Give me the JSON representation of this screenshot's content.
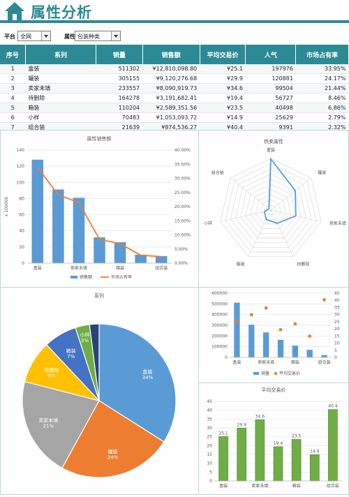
{
  "header": {
    "title": "属性分析"
  },
  "filters": {
    "platform_label": "平台",
    "platform_value": "全网",
    "attribute_label": "属性",
    "attribute_value": "包装种类"
  },
  "table": {
    "columns": [
      "序号",
      "系列",
      "销量",
      "销售额",
      "平均交易价",
      "人气",
      "市场占有率"
    ],
    "rows": [
      [
        "1",
        "盒装",
        "511302",
        "¥12,810,098.80",
        "¥25.1",
        "197976",
        "33.95%"
      ],
      [
        "2",
        "罐装",
        "305155",
        "¥9,120,276.68",
        "¥29.9",
        "120881",
        "24.17%"
      ],
      [
        "3",
        "卖家未填",
        "233557",
        "¥8,090,919.73",
        "¥34.6",
        "99504",
        "21.44%"
      ],
      [
        "4",
        "待删除",
        "164278",
        "¥3,191,682.41",
        "¥19.4",
        "56727",
        "8.46%"
      ],
      [
        "5",
        "箱装",
        "110204",
        "¥2,589,351.56",
        "¥23.5",
        "40498",
        "6.86%"
      ],
      [
        "6",
        "小样",
        "70483",
        "¥1,053,093.72",
        "¥14.9",
        "25629",
        "2.79%"
      ],
      [
        "7",
        "组合装",
        "21639",
        "¥874,536.27",
        "¥40.4",
        "9391",
        "2.32%"
      ]
    ]
  },
  "colors": {
    "teal": "#2c8a94",
    "blue": "#5b9bd5",
    "orange": "#ed7d31",
    "gray": "#a5a5a5",
    "yellow": "#ffc000",
    "navy": "#4472c4",
    "green": "#70ad47",
    "darkblue": "#264478"
  },
  "chart_data": [
    {
      "type": "bar",
      "title": "属性销售额",
      "ylabel": "x 100000",
      "categories": [
        "盒装",
        "罐装",
        "卖家未填",
        "待删除",
        "箱装",
        "小样",
        "组合装"
      ],
      "category_labels_shown": [
        "盒装",
        "卖家未填",
        "箱装",
        "组合装"
      ],
      "ylim": [
        0,
        140
      ],
      "y_ticks": [
        0,
        20,
        40,
        60,
        80,
        100,
        120,
        140
      ],
      "y2lim": [
        0,
        40
      ],
      "y2_ticks": [
        "0.00%",
        "5.00%",
        "10.00%",
        "15.00%",
        "20.00%",
        "25.00%",
        "30.00%",
        "35.00%",
        "40.00%"
      ],
      "series": [
        {
          "name": "销售额",
          "kind": "bar",
          "values": [
            128.1,
            91.2,
            80.9,
            31.9,
            25.9,
            10.5,
            8.7
          ]
        },
        {
          "name": "市场占有率",
          "kind": "line",
          "axis": "right",
          "values": [
            33.95,
            24.17,
            21.44,
            8.46,
            6.86,
            2.79,
            2.32
          ]
        }
      ],
      "legend": "bottom"
    },
    {
      "type": "radar",
      "title": "热卖属性",
      "categories": [
        "盒装",
        "罐装",
        "卖家未填",
        "待删除",
        "箱装",
        "小样",
        "组合装"
      ],
      "values": [
        197976,
        120881,
        99504,
        56727,
        40498,
        25629,
        9391
      ],
      "max": 200000
    },
    {
      "type": "pie",
      "title": "系列",
      "categories": [
        "盒装",
        "罐装",
        "卖家未填",
        "待删除",
        "箱装",
        "小样",
        "组合装"
      ],
      "values": [
        34,
        24,
        21,
        9,
        7,
        3,
        2
      ],
      "labels": [
        "盒装\n34%",
        "罐装\n24%",
        "卖家未填\n21%",
        "待删除\n9%",
        "箱装\n7%",
        "小样\n3%",
        ""
      ]
    },
    {
      "type": "bar",
      "categories": [
        "盒装",
        "罐装",
        "卖家未填",
        "待删除",
        "箱装",
        "小样",
        "组合装"
      ],
      "category_labels_shown": [
        "盒装",
        "卖家未填",
        "箱装",
        "组合装"
      ],
      "ylim": [
        0,
        600000
      ],
      "y_ticks": [
        0,
        100000,
        200000,
        300000,
        400000,
        500000,
        600000
      ],
      "y2lim": [
        0,
        45
      ],
      "y2_ticks": [
        0,
        5,
        10,
        15,
        20,
        25,
        30,
        35,
        40,
        45
      ],
      "series": [
        {
          "name": "销量",
          "kind": "bar",
          "values": [
            511302,
            305155,
            233557,
            164278,
            110204,
            70483,
            21639
          ]
        },
        {
          "name": "平均交易价",
          "kind": "scatter",
          "axis": "right",
          "values": [
            25.1,
            29.9,
            34.6,
            19.4,
            23.5,
            14.9,
            40.4
          ]
        }
      ],
      "legend": "bottom"
    },
    {
      "type": "bar",
      "title": "平均交易价",
      "categories": [
        "盒装",
        "罐装",
        "卖家未填",
        "待删除",
        "箱装",
        "小样",
        "组合装"
      ],
      "category_labels_shown": [
        "盒装",
        "卖家未填",
        "箱装",
        "组合装"
      ],
      "ylim": [
        0,
        45
      ],
      "y_ticks": [
        0,
        5,
        10,
        15,
        20,
        25,
        30,
        35,
        40,
        45
      ],
      "values": [
        25.1,
        29.9,
        34.6,
        19.4,
        23.5,
        14.9,
        40.4
      ],
      "data_labels": [
        "25.1",
        "29.9",
        "34.6",
        "19.4",
        "23.5",
        "14.9",
        "40.4"
      ]
    }
  ]
}
